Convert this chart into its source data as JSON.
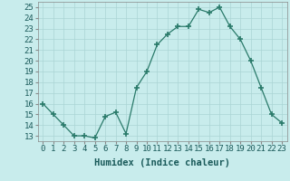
{
  "x": [
    0,
    1,
    2,
    3,
    4,
    5,
    6,
    7,
    8,
    9,
    10,
    11,
    12,
    13,
    14,
    15,
    16,
    17,
    18,
    19,
    20,
    21,
    22,
    23
  ],
  "y": [
    16,
    15,
    14,
    13,
    13,
    12.8,
    14.8,
    15.2,
    13.2,
    17.5,
    19,
    21.5,
    22.5,
    23.2,
    23.2,
    24.8,
    24.5,
    25,
    23.2,
    22,
    20,
    17.5,
    15,
    14.2
  ],
  "line_color": "#2a7a6a",
  "marker": "+",
  "marker_size": 5,
  "marker_linewidth": 1.2,
  "bg_color": "#c8ecec",
  "grid_color": "#aad4d4",
  "xlabel": "Humidex (Indice chaleur)",
  "ylim": [
    12.5,
    25.5
  ],
  "xlim": [
    -0.5,
    23.5
  ],
  "yticks": [
    13,
    14,
    15,
    16,
    17,
    18,
    19,
    20,
    21,
    22,
    23,
    24,
    25
  ],
  "xticks": [
    0,
    1,
    2,
    3,
    4,
    5,
    6,
    7,
    8,
    9,
    10,
    11,
    12,
    13,
    14,
    15,
    16,
    17,
    18,
    19,
    20,
    21,
    22,
    23
  ],
  "tick_fontsize": 6.5,
  "xlabel_fontsize": 7.5
}
